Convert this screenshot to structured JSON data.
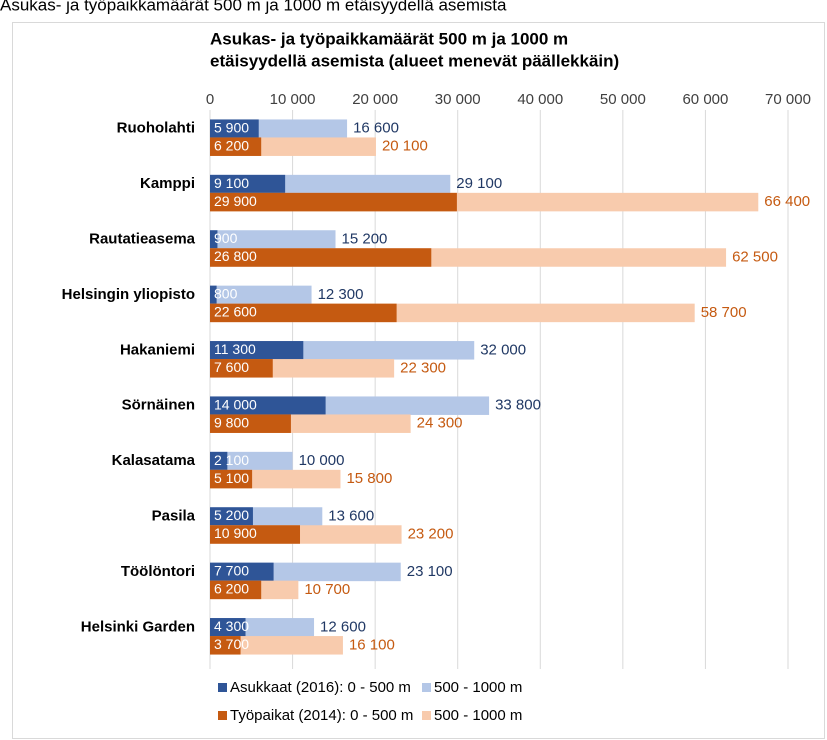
{
  "caption": "Asukas- ja työpaikkamäärät 500 m ja 1000 m etäisyydellä asemista",
  "chart_data": {
    "type": "bar",
    "orientation": "horizontal",
    "overlap": true,
    "title": [
      "Asukas- ja työpaikkamäärät 500 m ja 1000 m",
      "etäisyydellä asemista (alueet menevät päällekkäin)"
    ],
    "categories": [
      "Ruoholahti",
      "Kamppi",
      "Rautatieasema",
      "Helsingin yliopisto",
      "Hakaniemi",
      "Sörnäinen",
      "Kalasatama",
      "Pasila",
      "Töölöntori",
      "Helsinki Garden"
    ],
    "series": [
      {
        "name": "Asukkaat (2016): 0 - 500 m",
        "color": "#2f5597",
        "label_color": "#ffffff",
        "values": [
          5900,
          9100,
          900,
          800,
          11300,
          14000,
          2100,
          5200,
          7700,
          4300
        ],
        "value_labels": [
          "5 900",
          "9 100",
          "900",
          "800",
          "11 300",
          "14 000",
          "2 100",
          "5 200",
          "7 700",
          "4 300"
        ]
      },
      {
        "name": "500 - 1000 m",
        "color": "#b4c7e7",
        "label_color": "#203864",
        "values": [
          16600,
          29100,
          15200,
          12300,
          32000,
          33800,
          10000,
          13600,
          23100,
          12600
        ],
        "value_labels": [
          "16 600",
          "29 100",
          "15 200",
          "12 300",
          "32 000",
          "33 800",
          "10 000",
          "13 600",
          "23 100",
          "12 600"
        ]
      },
      {
        "name": "Työpaikat (2014): 0 - 500 m",
        "color": "#c55a11",
        "label_color": "#ffffff",
        "values": [
          6200,
          29900,
          26800,
          22600,
          7600,
          9800,
          5100,
          10900,
          6200,
          3700
        ],
        "value_labels": [
          "6 200",
          "29 900",
          "26 800",
          "22 600",
          "7 600",
          "9 800",
          "5 100",
          "10 900",
          "6 200",
          "3 700"
        ]
      },
      {
        "name": "500 - 1000 m",
        "color": "#f8cbad",
        "label_color": "#c55a11",
        "values": [
          20100,
          66400,
          62500,
          58700,
          22300,
          24300,
          15800,
          23200,
          10700,
          16100
        ],
        "value_labels": [
          "20 100",
          "66 400",
          "62 500",
          "58 700",
          "22 300",
          "24 300",
          "15 800",
          "23 200",
          "10 700",
          "16 100"
        ]
      }
    ],
    "xlim": [
      0,
      70000
    ],
    "xticks": [
      0,
      {
        "value": 10000,
        "label": "10 000"
      },
      {
        "value": 20000,
        "label": "20 000"
      },
      {
        "value": 30000,
        "label": "30 000"
      },
      {
        "value": 40000,
        "label": "40 000"
      },
      {
        "value": 50000,
        "label": "50 000"
      },
      {
        "value": 60000,
        "label": "60 000"
      },
      {
        "value": 70000,
        "label": "70 000"
      }
    ],
    "grid": true,
    "legend": "bottom"
  }
}
